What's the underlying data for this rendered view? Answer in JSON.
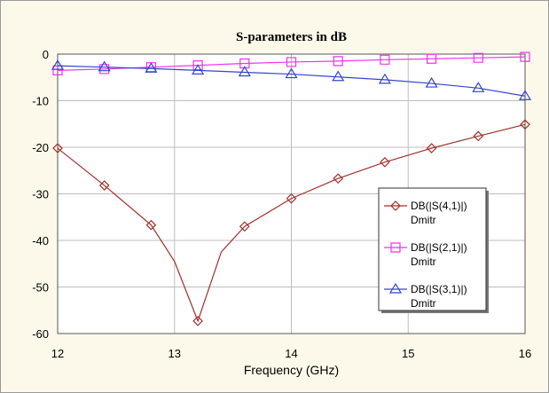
{
  "chart_data": {
    "type": "line",
    "title": "S-parameters in dB",
    "xlabel": "Frequency (GHz)",
    "ylabel": "",
    "xlim": [
      12,
      16
    ],
    "ylim": [
      -60,
      0
    ],
    "xticks": [
      "12",
      "13",
      "14",
      "15",
      "16"
    ],
    "yticks": [
      "0",
      "-10",
      "-20",
      "-30",
      "-40",
      "-50",
      "-60"
    ],
    "grid": true,
    "legend_position": "right",
    "series": [
      {
        "name": "DB(|S(4,1)|)",
        "sub": "Dmitr",
        "color": "#a0302a",
        "marker": "diamond",
        "x": [
          12,
          12.4,
          12.8,
          13,
          13.2,
          13.4,
          13.6,
          14,
          14.4,
          14.8,
          15.2,
          15.6,
          16
        ],
        "y": [
          -20.2,
          -28.2,
          -36.7,
          -44.5,
          -57.3,
          -42.5,
          -37,
          -31,
          -26.7,
          -23.2,
          -20.2,
          -17.6,
          -15.1
        ]
      },
      {
        "name": "DB(|S(2,1)|)",
        "sub": "Dmitr",
        "color": "#ee33ee",
        "marker": "square",
        "x": [
          12,
          12.4,
          12.8,
          13.2,
          13.6,
          14,
          14.4,
          14.8,
          15.2,
          15.6,
          16
        ],
        "y": [
          -3.5,
          -3.2,
          -2.8,
          -2.4,
          -2.0,
          -1.7,
          -1.5,
          -1.2,
          -1.0,
          -0.8,
          -0.6
        ]
      },
      {
        "name": "DB(|S(3,1)|)",
        "sub": "Dmitr",
        "color": "#3344cc",
        "marker": "triangle",
        "x": [
          12,
          12.4,
          12.8,
          13.2,
          13.6,
          14,
          14.4,
          14.8,
          15.2,
          15.6,
          16
        ],
        "y": [
          -2.5,
          -2.8,
          -3.1,
          -3.5,
          -3.9,
          -4.3,
          -4.9,
          -5.5,
          -6.3,
          -7.3,
          -9.0
        ]
      }
    ]
  }
}
